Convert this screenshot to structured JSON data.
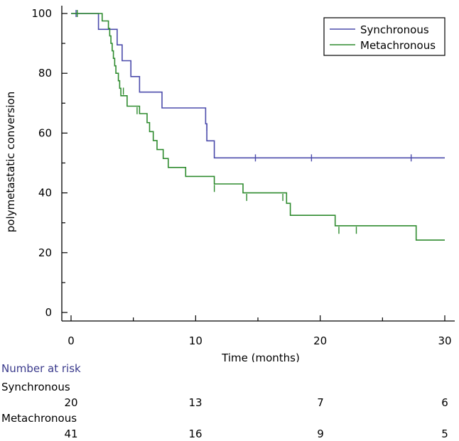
{
  "chart_data": {
    "type": "line",
    "subtype": "kaplan-meier step",
    "xlabel": "Time (months)",
    "ylabel": "polymetastatic conversion",
    "xlim": [
      0,
      30
    ],
    "ylim": [
      0,
      100
    ],
    "xticks": [
      0,
      10,
      20,
      30
    ],
    "yticks": [
      0,
      20,
      40,
      60,
      80,
      100
    ],
    "legend_position": "top-right",
    "series": [
      {
        "name": "Synchronous",
        "color": "#4b4bab",
        "steps": [
          [
            0,
            100
          ],
          [
            2.2,
            100
          ],
          [
            2.2,
            94.7
          ],
          [
            3.7,
            94.7
          ],
          [
            3.7,
            89.5
          ],
          [
            4.1,
            89.5
          ],
          [
            4.1,
            84.2
          ],
          [
            4.8,
            84.2
          ],
          [
            4.8,
            78.9
          ],
          [
            5.5,
            78.9
          ],
          [
            5.5,
            73.7
          ],
          [
            7.3,
            73.7
          ],
          [
            7.3,
            68.4
          ],
          [
            10.8,
            68.4
          ],
          [
            10.8,
            63.1
          ],
          [
            10.9,
            63.1
          ],
          [
            10.9,
            57.4
          ],
          [
            11.5,
            57.4
          ],
          [
            11.5,
            51.7
          ],
          [
            30,
            51.7
          ]
        ],
        "censored": [
          [
            0.4,
            100
          ],
          [
            10.9,
            62
          ],
          [
            14.8,
            51.7
          ],
          [
            19.3,
            51.7
          ],
          [
            27.3,
            51.7
          ]
        ]
      },
      {
        "name": "Metachronous",
        "color": "#2e8b2e",
        "steps": [
          [
            0,
            100
          ],
          [
            2.5,
            100
          ],
          [
            2.5,
            97.5
          ],
          [
            3.0,
            97.5
          ],
          [
            3.0,
            95
          ],
          [
            3.1,
            95
          ],
          [
            3.1,
            92.5
          ],
          [
            3.2,
            92.5
          ],
          [
            3.2,
            90
          ],
          [
            3.3,
            90
          ],
          [
            3.3,
            87.5
          ],
          [
            3.4,
            87.5
          ],
          [
            3.4,
            85
          ],
          [
            3.5,
            85
          ],
          [
            3.5,
            82.5
          ],
          [
            3.6,
            82.5
          ],
          [
            3.6,
            80
          ],
          [
            3.8,
            80
          ],
          [
            3.8,
            77.5
          ],
          [
            3.9,
            77.5
          ],
          [
            3.9,
            75
          ],
          [
            4.0,
            75
          ],
          [
            4.0,
            72.5
          ],
          [
            4.5,
            72.5
          ],
          [
            4.5,
            69
          ],
          [
            5.5,
            69
          ],
          [
            5.5,
            66.5
          ],
          [
            6.1,
            66.5
          ],
          [
            6.1,
            63.5
          ],
          [
            6.3,
            63.5
          ],
          [
            6.3,
            60.5
          ],
          [
            6.6,
            60.5
          ],
          [
            6.6,
            57.5
          ],
          [
            6.9,
            57.5
          ],
          [
            6.9,
            54.5
          ],
          [
            7.4,
            54.5
          ],
          [
            7.4,
            51.5
          ],
          [
            7.8,
            51.5
          ],
          [
            7.8,
            48.5
          ],
          [
            9.2,
            48.5
          ],
          [
            9.2,
            45.5
          ],
          [
            11.5,
            45.5
          ],
          [
            11.5,
            43
          ],
          [
            13.8,
            43
          ],
          [
            13.8,
            40
          ],
          [
            17.3,
            40
          ],
          [
            17.3,
            36.5
          ],
          [
            17.6,
            36.5
          ],
          [
            17.6,
            32.5
          ],
          [
            21.2,
            32.5
          ],
          [
            21.2,
            29
          ],
          [
            27.7,
            29
          ],
          [
            27.7,
            24.2
          ],
          [
            30,
            24.2
          ]
        ],
        "censored": [
          [
            0.5,
            100
          ],
          [
            4.2,
            74
          ],
          [
            5.3,
            67.5
          ],
          [
            11.5,
            41.5
          ],
          [
            14.1,
            38.5
          ],
          [
            17.0,
            38.5
          ],
          [
            21.5,
            27.5
          ],
          [
            22.9,
            27.5
          ]
        ]
      }
    ]
  },
  "risk_table": {
    "title": "Number at risk",
    "times": [
      0,
      10,
      20,
      30
    ],
    "groups": [
      {
        "name": "Synchronous",
        "counts": [
          "20",
          "13",
          "7",
          "6"
        ]
      },
      {
        "name": "Metachronous",
        "counts": [
          "41",
          "16",
          "9",
          "5"
        ]
      }
    ]
  }
}
